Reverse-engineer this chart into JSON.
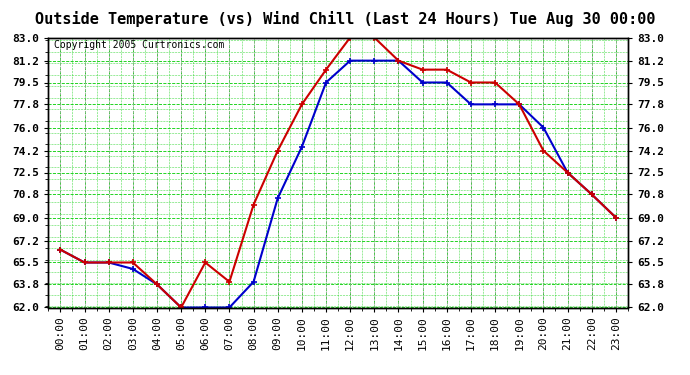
{
  "title": "Outside Temperature (vs) Wind Chill (Last 24 Hours) Tue Aug 30 00:00",
  "copyright": "Copyright 2005 Curtronics.com",
  "x_labels": [
    "00:00",
    "01:00",
    "02:00",
    "03:00",
    "04:00",
    "05:00",
    "06:00",
    "07:00",
    "08:00",
    "09:00",
    "10:00",
    "11:00",
    "12:00",
    "13:00",
    "14:00",
    "15:00",
    "16:00",
    "17:00",
    "18:00",
    "19:00",
    "20:00",
    "21:00",
    "22:00",
    "23:00"
  ],
  "ylim": [
    62.0,
    83.0
  ],
  "yticks": [
    62.0,
    63.8,
    65.5,
    67.2,
    69.0,
    70.8,
    72.5,
    74.2,
    76.0,
    77.8,
    79.5,
    81.2,
    83.0
  ],
  "blue_data": [
    66.5,
    65.5,
    65.5,
    65.0,
    63.8,
    62.0,
    62.0,
    62.0,
    64.0,
    70.5,
    74.5,
    79.5,
    81.2,
    81.2,
    81.2,
    79.5,
    79.5,
    77.8,
    77.8,
    77.8,
    76.0,
    72.5,
    70.8,
    69.0
  ],
  "red_data": [
    66.5,
    65.5,
    65.5,
    65.5,
    63.8,
    62.0,
    65.5,
    64.0,
    70.0,
    74.2,
    77.8,
    80.5,
    83.0,
    83.0,
    81.2,
    80.5,
    80.5,
    79.5,
    79.5,
    77.8,
    74.2,
    72.5,
    70.8,
    69.0
  ],
  "blue_color": "#0000cc",
  "red_color": "#cc0000",
  "bg_color": "#ffffff",
  "grid_color_major": "#00cc00",
  "grid_color_minor": "#00cc00",
  "title_fontsize": 11,
  "copyright_fontsize": 7,
  "tick_fontsize": 8,
  "marker": "+",
  "marker_size": 5,
  "linewidth": 1.5
}
